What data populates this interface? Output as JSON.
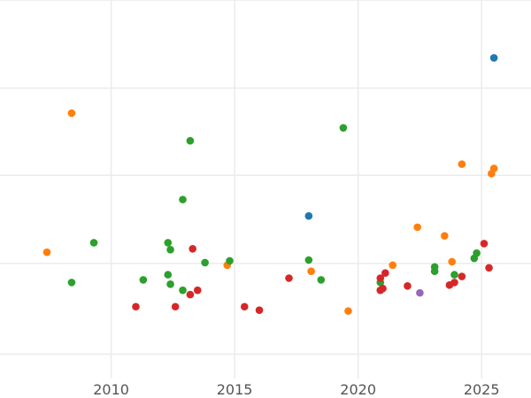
{
  "chart_data": {
    "type": "scatter",
    "title": "",
    "xlabel": "",
    "ylabel": "",
    "grid": true,
    "legend": "none",
    "xlim": [
      2005.5,
      2027.0
    ],
    "ylim": [
      0,
      430
    ],
    "x_ticks": [
      2010,
      2015,
      2020,
      2025
    ],
    "x_tick_labels": [
      "2010",
      "2015",
      "2020",
      "2025"
    ],
    "y_gridlines": [
      20,
      125,
      227,
      328,
      430
    ],
    "colors": {
      "blue": "#1f77b4",
      "orange": "#ff7f0e",
      "green": "#2ca02c",
      "red": "#d62728",
      "purple": "#9467bd",
      "grid": "#ebebeb"
    },
    "series": [
      {
        "color": "#1f77b4",
        "points": [
          [
            2025.5,
            363
          ],
          [
            2018.0,
            180
          ]
        ]
      },
      {
        "color": "#ff7f0e",
        "points": [
          [
            2008.4,
            299
          ],
          [
            2007.4,
            138
          ],
          [
            2024.2,
            240
          ],
          [
            2025.5,
            235
          ],
          [
            2025.4,
            229
          ],
          [
            2022.4,
            167
          ],
          [
            2023.5,
            157
          ],
          [
            2023.8,
            127
          ],
          [
            2021.4,
            123
          ],
          [
            2018.1,
            116
          ],
          [
            2014.7,
            123
          ],
          [
            2019.6,
            70
          ]
        ]
      },
      {
        "color": "#2ca02c",
        "points": [
          [
            2013.2,
            267
          ],
          [
            2019.4,
            282
          ],
          [
            2012.9,
            199
          ],
          [
            2009.3,
            149
          ],
          [
            2008.4,
            103
          ],
          [
            2012.3,
            149
          ],
          [
            2012.4,
            141
          ],
          [
            2014.8,
            128
          ],
          [
            2013.8,
            126
          ],
          [
            2018.0,
            129
          ],
          [
            2012.3,
            112
          ],
          [
            2011.3,
            106
          ],
          [
            2012.4,
            101
          ],
          [
            2012.9,
            94
          ],
          [
            2018.5,
            106
          ],
          [
            2020.9,
            103
          ],
          [
            2023.1,
            121
          ],
          [
            2023.1,
            116
          ],
          [
            2023.9,
            112
          ],
          [
            2024.7,
            131
          ],
          [
            2024.8,
            137
          ]
        ]
      },
      {
        "color": "#d62728",
        "points": [
          [
            2013.3,
            142
          ],
          [
            2011.0,
            75
          ],
          [
            2012.6,
            75
          ],
          [
            2013.5,
            94
          ],
          [
            2013.2,
            89
          ],
          [
            2015.4,
            75
          ],
          [
            2016.0,
            71
          ],
          [
            2017.2,
            108
          ],
          [
            2020.9,
            108
          ],
          [
            2021.1,
            114
          ],
          [
            2020.9,
            94
          ],
          [
            2021.0,
            96
          ],
          [
            2022.0,
            99
          ],
          [
            2023.7,
            100
          ],
          [
            2023.9,
            103
          ],
          [
            2024.2,
            110
          ],
          [
            2025.1,
            148
          ],
          [
            2025.3,
            120
          ]
        ]
      },
      {
        "color": "#9467bd",
        "points": [
          [
            2022.5,
            91
          ]
        ]
      }
    ]
  }
}
